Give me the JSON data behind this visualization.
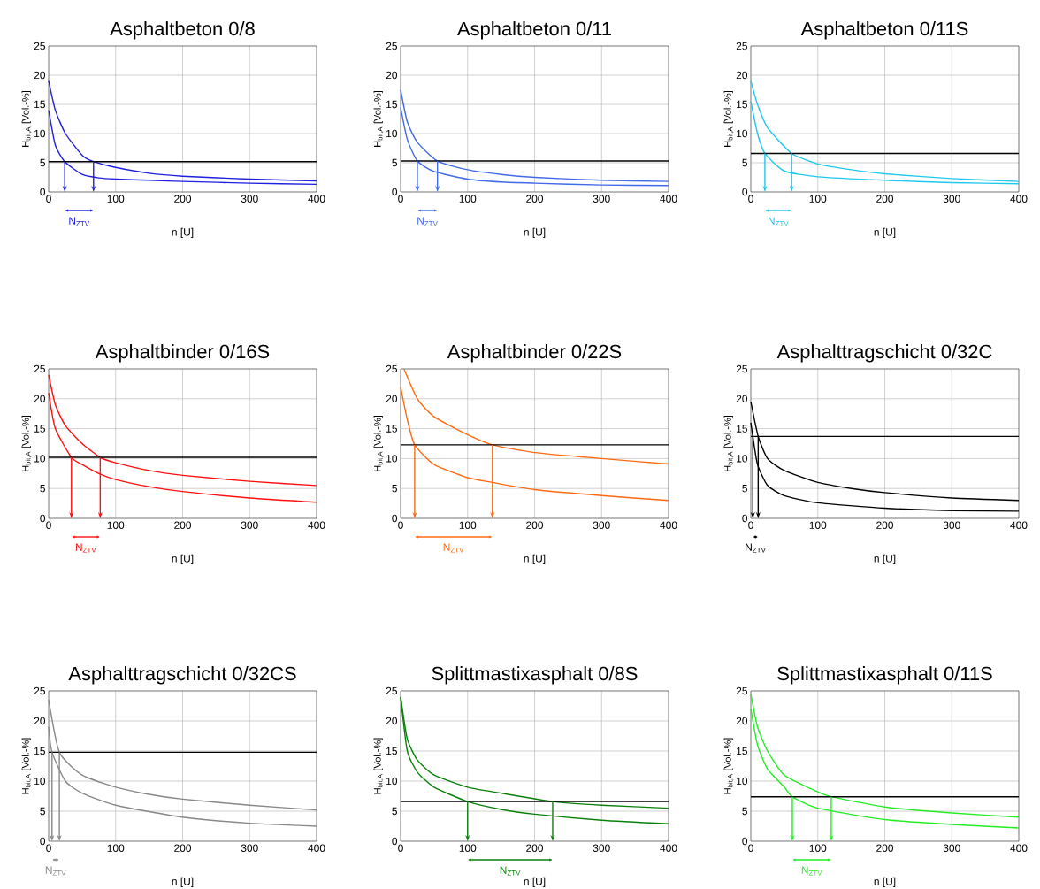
{
  "chart_data": [
    {
      "type": "line",
      "title": "Asphaltbeton 0/8",
      "xlabel": "n [U]",
      "ylabel": "H$_{bit,A}$ [Vol.-%]",
      "xlim": [
        0,
        400
      ],
      "xticks": [
        0,
        100,
        200,
        300,
        400
      ],
      "ylim": [
        0,
        25
      ],
      "yticks": [
        0,
        5,
        10,
        15,
        20,
        25
      ],
      "grid": true,
      "series": [
        {
          "color": "#1f1fe0",
          "x": [
            0,
            10,
            25,
            50,
            67,
            100,
            150,
            200,
            300,
            400
          ],
          "values": [
            19,
            14,
            10,
            6.3,
            5.2,
            4.2,
            3.2,
            2.7,
            2.2,
            1.9
          ]
        },
        {
          "color": "#1f1fe0",
          "x": [
            0,
            10,
            24,
            50,
            75,
            100,
            150,
            200,
            300,
            400
          ],
          "values": [
            14,
            8,
            5.2,
            3,
            2.4,
            2.2,
            2.0,
            1.8,
            1.5,
            1.3
          ]
        }
      ],
      "ref_lines": [
        {
          "axis": "y",
          "value": 5.2,
          "color": "#000000"
        },
        {
          "axis": "x",
          "value": 24,
          "color": "#1f1fe0"
        },
        {
          "axis": "x",
          "value": 67,
          "color": "#1f1fe0"
        }
      ],
      "annotations": [
        "N$_{ZTV}$"
      ]
    },
    {
      "type": "line",
      "title": "Asphaltbeton 0/11",
      "xlabel": "n [U]",
      "ylabel": "H$_{bit,A}$ [Vol.-%]",
      "xlim": [
        0,
        400
      ],
      "xticks": [
        0,
        100,
        200,
        300,
        400
      ],
      "ylim": [
        0,
        25
      ],
      "yticks": [
        0,
        5,
        10,
        15,
        20,
        25
      ],
      "grid": true,
      "series": [
        {
          "color": "#4169e8",
          "x": [
            0,
            10,
            25,
            55,
            100,
            150,
            200,
            300,
            400
          ],
          "values": [
            17.5,
            12,
            8.5,
            5.3,
            3.8,
            3.0,
            2.5,
            2.0,
            1.8
          ]
        },
        {
          "color": "#4169e8",
          "x": [
            0,
            10,
            25,
            50,
            100,
            150,
            200,
            300,
            400
          ],
          "values": [
            14.5,
            9,
            5.3,
            3.5,
            2.2,
            1.7,
            1.5,
            1.2,
            1.1
          ]
        }
      ],
      "ref_lines": [
        {
          "axis": "y",
          "value": 5.3,
          "color": "#000000"
        },
        {
          "axis": "x",
          "value": 25,
          "color": "#4169e8"
        },
        {
          "axis": "x",
          "value": 55,
          "color": "#4169e8"
        }
      ],
      "annotations": [
        "N$_{ZTV}$"
      ]
    },
    {
      "type": "line",
      "title": "Asphaltbeton 0/11S",
      "xlabel": "n [U]",
      "ylabel": "H$_{bit,A}$ [Vol.-%]",
      "xlim": [
        0,
        400
      ],
      "xticks": [
        0,
        100,
        200,
        300,
        400
      ],
      "ylim": [
        0,
        25
      ],
      "yticks": [
        0,
        5,
        10,
        15,
        20,
        25
      ],
      "grid": true,
      "series": [
        {
          "color": "#1ec8f0",
          "x": [
            0,
            10,
            25,
            61,
            100,
            150,
            200,
            300,
            400
          ],
          "values": [
            19,
            15,
            11,
            6.6,
            4.8,
            3.8,
            3.1,
            2.3,
            1.8
          ]
        },
        {
          "color": "#1ec8f0",
          "x": [
            0,
            10,
            21,
            50,
            100,
            200,
            300,
            400
          ],
          "values": [
            15.5,
            10,
            6.6,
            3.6,
            2.6,
            2.0,
            1.6,
            1.4
          ]
        }
      ],
      "ref_lines": [
        {
          "axis": "y",
          "value": 6.6,
          "color": "#000000"
        },
        {
          "axis": "x",
          "value": 21,
          "color": "#1ec8f0"
        },
        {
          "axis": "x",
          "value": 61,
          "color": "#1ec8f0"
        }
      ],
      "annotations": [
        "N$_{ZTV}$"
      ]
    },
    {
      "type": "line",
      "title": "Asphaltbinder 0/16S",
      "xlabel": "n [U]",
      "ylabel": "H$_{bit,A}$ [Vol.-%]",
      "xlim": [
        0,
        400
      ],
      "xticks": [
        0,
        100,
        200,
        300,
        400
      ],
      "ylim": [
        0,
        25
      ],
      "yticks": [
        0,
        5,
        10,
        15,
        20,
        25
      ],
      "grid": true,
      "series": [
        {
          "color": "#ff1010",
          "x": [
            0,
            10,
            25,
            50,
            77,
            100,
            150,
            200,
            300,
            400
          ],
          "values": [
            24,
            19,
            15.5,
            12.5,
            10.2,
            9.3,
            8.0,
            7.2,
            6.2,
            5.5
          ]
        },
        {
          "color": "#ff1010",
          "x": [
            0,
            10,
            34,
            50,
            75,
            100,
            150,
            200,
            300,
            400
          ],
          "values": [
            21,
            15,
            10.2,
            9,
            7.5,
            6.5,
            5.3,
            4.5,
            3.4,
            2.7
          ]
        }
      ],
      "ref_lines": [
        {
          "axis": "y",
          "value": 10.2,
          "color": "#000000"
        },
        {
          "axis": "x",
          "value": 34,
          "color": "#ff1010"
        },
        {
          "axis": "x",
          "value": 77,
          "color": "#ff1010"
        }
      ],
      "annotations": [
        "N$_{ZTV}$"
      ]
    },
    {
      "type": "line",
      "title": "Asphaltbinder 0/22S",
      "xlabel": "n [U]",
      "ylabel": "H$_{bit,A}$ [Vol.-%]",
      "xlim": [
        0,
        400
      ],
      "xticks": [
        0,
        100,
        200,
        300,
        400
      ],
      "ylim": [
        0,
        25
      ],
      "yticks": [
        0,
        5,
        10,
        15,
        20,
        25
      ],
      "grid": true,
      "series": [
        {
          "color": "#ff6a10",
          "x": [
            5,
            25,
            50,
            100,
            137,
            200,
            300,
            400
          ],
          "values": [
            25,
            20,
            17,
            14,
            12.3,
            11,
            10,
            9.1
          ]
        },
        {
          "color": "#ff6a10",
          "x": [
            0,
            10,
            21,
            50,
            100,
            137,
            200,
            300,
            400
          ],
          "values": [
            22,
            16.5,
            12.3,
            9,
            6.8,
            6.0,
            4.8,
            3.8,
            3.0
          ]
        }
      ],
      "ref_lines": [
        {
          "axis": "y",
          "value": 12.3,
          "color": "#000000"
        },
        {
          "axis": "x",
          "value": 21,
          "color": "#ff6a10"
        },
        {
          "axis": "x",
          "value": 137,
          "color": "#ff6a10"
        }
      ],
      "annotations": [
        "N$_{ZTV}$"
      ]
    },
    {
      "type": "line",
      "title": "Asphalttragschicht 0/32C",
      "xlabel": "n [U]",
      "ylabel": "H$_{bit,A}$ [Vol.-%]",
      "xlim": [
        0,
        400
      ],
      "xticks": [
        0,
        100,
        200,
        300,
        400
      ],
      "ylim": [
        0,
        25
      ],
      "yticks": [
        0,
        5,
        10,
        15,
        20,
        25
      ],
      "grid": true,
      "series": [
        {
          "color": "#000000",
          "x": [
            0,
            11,
            25,
            50,
            100,
            150,
            200,
            300,
            400
          ],
          "values": [
            19.5,
            13.7,
            10,
            8,
            6,
            5,
            4.3,
            3.4,
            3.0
          ]
        },
        {
          "color": "#000000",
          "x": [
            0,
            3,
            10,
            25,
            50,
            100,
            200,
            300,
            400
          ],
          "values": [
            16,
            13.7,
            9,
            5.5,
            3.8,
            2.6,
            1.7,
            1.3,
            1.2
          ]
        }
      ],
      "ref_lines": [
        {
          "axis": "y",
          "value": 13.7,
          "color": "#000000"
        },
        {
          "axis": "x",
          "value": 3,
          "color": "#000000"
        },
        {
          "axis": "x",
          "value": 11,
          "color": "#000000"
        }
      ],
      "annotations": [
        "N$_{ZTV}$"
      ]
    },
    {
      "type": "line",
      "title": "Asphalttragschicht 0/32CS",
      "xlabel": "n [U]",
      "ylabel": "H$_{bit,A}$ [Vol.-%]",
      "xlim": [
        0,
        400
      ],
      "xticks": [
        0,
        100,
        200,
        300,
        400
      ],
      "ylim": [
        0,
        25
      ],
      "yticks": [
        0,
        5,
        10,
        15,
        20,
        25
      ],
      "grid": true,
      "series": [
        {
          "color": "#888888",
          "x": [
            0,
            16,
            50,
            100,
            150,
            200,
            300,
            400
          ],
          "values": [
            23.5,
            14.8,
            11,
            9,
            7.8,
            7,
            6,
            5.2
          ]
        },
        {
          "color": "#888888",
          "x": [
            0,
            5,
            25,
            50,
            100,
            200,
            300,
            400
          ],
          "values": [
            19,
            14.8,
            10,
            8,
            6,
            4,
            3,
            2.5
          ]
        }
      ],
      "ref_lines": [
        {
          "axis": "y",
          "value": 14.8,
          "color": "#000000"
        },
        {
          "axis": "x",
          "value": 5,
          "color": "#888888"
        },
        {
          "axis": "x",
          "value": 16,
          "color": "#888888"
        }
      ],
      "annotations": [
        "N$_{ZTV}$"
      ]
    },
    {
      "type": "line",
      "title": "Splittmastixasphalt 0/8S",
      "xlabel": "n [U]",
      "ylabel": "H$_{bit,A}$ [Vol.-%]",
      "xlim": [
        0,
        400
      ],
      "xticks": [
        0,
        100,
        200,
        300,
        400
      ],
      "ylim": [
        0,
        25
      ],
      "yticks": [
        0,
        5,
        10,
        15,
        20,
        25
      ],
      "grid": true,
      "series": [
        {
          "color": "#0a800a",
          "x": [
            0,
            10,
            25,
            50,
            100,
            150,
            227,
            300,
            400
          ],
          "values": [
            24,
            17,
            13.5,
            11,
            9,
            8,
            6.6,
            6,
            5.5
          ]
        },
        {
          "color": "#0a800a",
          "x": [
            0,
            10,
            25,
            50,
            100,
            150,
            200,
            300,
            400
          ],
          "values": [
            24,
            15,
            11.5,
            9,
            6.6,
            5.3,
            4.5,
            3.5,
            2.9
          ]
        }
      ],
      "ref_lines": [
        {
          "axis": "y",
          "value": 6.6,
          "color": "#000000"
        },
        {
          "axis": "x",
          "value": 100,
          "color": "#0a800a"
        },
        {
          "axis": "x",
          "value": 227,
          "color": "#0a800a"
        }
      ],
      "annotations": [
        "N$_{ZTV}$"
      ]
    },
    {
      "type": "line",
      "title": "Splittmastixasphalt 0/11S",
      "xlabel": "n [U]",
      "ylabel": "H$_{bit,A}$ [Vol.-%]",
      "xlim": [
        0,
        400
      ],
      "xticks": [
        0,
        100,
        200,
        300,
        400
      ],
      "ylim": [
        0,
        25
      ],
      "yticks": [
        0,
        5,
        10,
        15,
        20,
        25
      ],
      "grid": true,
      "series": [
        {
          "color": "#22ee22",
          "x": [
            0,
            10,
            25,
            50,
            100,
            120,
            200,
            300,
            400
          ],
          "values": [
            24.5,
            19,
            15,
            11,
            8.2,
            7.4,
            5.7,
            4.7,
            4.0
          ]
        },
        {
          "color": "#22ee22",
          "x": [
            0,
            10,
            25,
            50,
            62,
            100,
            200,
            300,
            400
          ],
          "values": [
            22,
            16,
            12,
            9,
            7.4,
            5.5,
            3.6,
            2.8,
            2.2
          ]
        }
      ],
      "ref_lines": [
        {
          "axis": "y",
          "value": 7.4,
          "color": "#000000"
        },
        {
          "axis": "x",
          "value": 62,
          "color": "#22ee22"
        },
        {
          "axis": "x",
          "value": 120,
          "color": "#22ee22"
        }
      ],
      "annotations": [
        "N$_{ZTV}$"
      ]
    }
  ]
}
